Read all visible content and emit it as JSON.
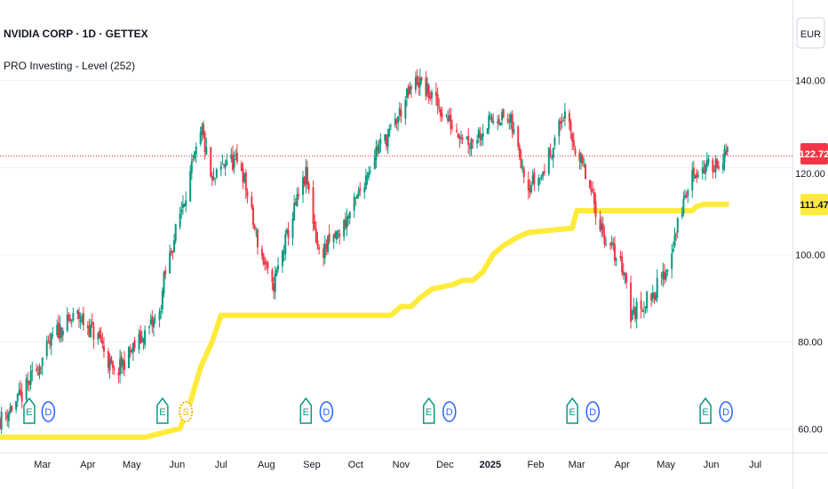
{
  "header": {
    "symbol_title": "NVIDIA CORP · 1D · GETTEX",
    "indicator_title": "PRO Investing - Level (252)",
    "currency": "EUR"
  },
  "price_badges": {
    "last_price": "122.72",
    "last_price_color": "#f23645",
    "level_value": "111.47",
    "level_color": "#ffeb3b",
    "hidden_label": "120.00"
  },
  "events": [
    {
      "type": "E",
      "date": "2024-02-21"
    },
    {
      "type": "D",
      "date": "2024-03-05"
    },
    {
      "type": "E",
      "date": "2024-05-22"
    },
    {
      "type": "S",
      "date": "2024-06-07"
    },
    {
      "type": "E",
      "date": "2024-08-28"
    },
    {
      "type": "D",
      "date": "2024-09-11"
    },
    {
      "type": "E",
      "date": "2024-11-20"
    },
    {
      "type": "D",
      "date": "2024-12-04"
    },
    {
      "type": "E",
      "date": "2025-02-26"
    },
    {
      "type": "D",
      "date": "2025-03-12"
    },
    {
      "type": "E",
      "date": "2025-05-28"
    },
    {
      "type": "D",
      "date": "2025-06-11"
    }
  ],
  "chart_data": {
    "type": "candlestick",
    "title": "NVIDIA CORP · 1D · GETTEX",
    "currency": "EUR",
    "y_axis_ticks": [
      60,
      80,
      100,
      120,
      140
    ],
    "y_tick_labels": [
      "60.00",
      "80.00",
      "100.00",
      "120.00",
      "140.00"
    ],
    "ylim": [
      58,
      148
    ],
    "x_tick_labels": [
      "Mar",
      "Apr",
      "May",
      "Jun",
      "Jul",
      "Aug",
      "Sep",
      "Oct",
      "Nov",
      "Dec",
      "2025",
      "Feb",
      "Mar",
      "Apr",
      "May",
      "Jun",
      "Jul"
    ],
    "x_tick_dates": [
      "2024-03-01",
      "2024-04-01",
      "2024-05-01",
      "2024-06-01",
      "2024-07-01",
      "2024-08-01",
      "2024-09-01",
      "2024-10-01",
      "2024-11-01",
      "2024-12-01",
      "2025-01-01",
      "2025-02-01",
      "2025-03-01",
      "2025-04-01",
      "2025-05-01",
      "2025-06-01",
      "2025-07-01"
    ],
    "x_range": [
      "2024-02-01",
      "2025-07-24"
    ],
    "last_price": 122.72,
    "price_series": {
      "name": "NVIDIA CORP",
      "dates": [
        "2024-02-01",
        "2024-02-15",
        "2024-03-01",
        "2024-03-10",
        "2024-03-25",
        "2024-04-10",
        "2024-04-19",
        "2024-05-01",
        "2024-05-20",
        "2024-05-23",
        "2024-06-05",
        "2024-06-18",
        "2024-06-25",
        "2024-07-05",
        "2024-07-15",
        "2024-07-25",
        "2024-08-05",
        "2024-08-20",
        "2024-08-28",
        "2024-09-06",
        "2024-09-20",
        "2024-10-01",
        "2024-10-15",
        "2024-10-25",
        "2024-11-05",
        "2024-11-12",
        "2024-11-22",
        "2024-12-05",
        "2024-12-18",
        "2025-01-06",
        "2025-01-15",
        "2025-01-27",
        "2025-02-05",
        "2025-02-20",
        "2025-03-05",
        "2025-03-20",
        "2025-04-03",
        "2025-04-07",
        "2025-04-20",
        "2025-05-01",
        "2025-05-13",
        "2025-05-20",
        "2025-05-30",
        "2025-06-12"
      ],
      "close": [
        62,
        67,
        76,
        82,
        86,
        80,
        72,
        78,
        86,
        94,
        112,
        128,
        116,
        122,
        120,
        104,
        92,
        110,
        118,
        100,
        105,
        112,
        124,
        128,
        136,
        140,
        136,
        130,
        126,
        132,
        130,
        116,
        118,
        132,
        120,
        104,
        96,
        86,
        90,
        96,
        112,
        119,
        120,
        122.72
      ]
    },
    "level_series": {
      "name": "PRO Investing - Level (252)",
      "color": "#ffeb3b",
      "dates": [
        "2024-02-01",
        "2024-05-10",
        "2024-06-03",
        "2024-06-10",
        "2024-06-17",
        "2024-06-25",
        "2024-07-01",
        "2024-10-25",
        "2024-11-01",
        "2024-11-08",
        "2024-11-14",
        "2024-11-22",
        "2024-12-06",
        "2024-12-13",
        "2024-12-20",
        "2024-12-27",
        "2025-01-03",
        "2025-01-10",
        "2025-01-20",
        "2025-01-27",
        "2025-02-26",
        "2025-03-01",
        "2025-05-19",
        "2025-05-22",
        "2025-05-27",
        "2025-06-13"
      ],
      "values": [
        58,
        58,
        60,
        66,
        74,
        80,
        86,
        86,
        88,
        88,
        90,
        92,
        93,
        94,
        94,
        96,
        100,
        102,
        104,
        105,
        106,
        110,
        110,
        111,
        111.47,
        111.47
      ]
    }
  }
}
